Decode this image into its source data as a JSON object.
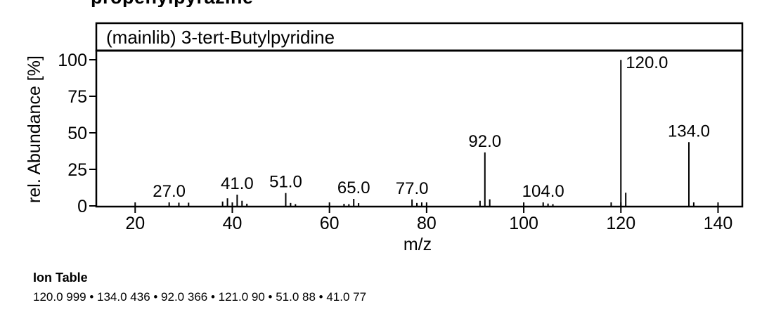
{
  "page": {
    "background": "#ffffff",
    "ink_color": "#000000"
  },
  "header_partial": {
    "text": "propenylpyrazine"
  },
  "chart_data": {
    "type": "bar",
    "subtype": "mass-spectrum-stick-plot",
    "title": "(mainlib) 3-tert-Butylpyridine",
    "xlabel": "m/z",
    "ylabel": "rel. Abundance [%]",
    "xlim": [
      12,
      145
    ],
    "ylim_percent": [
      0,
      100
    ],
    "x_ticks": [
      20,
      40,
      60,
      80,
      100,
      120,
      140
    ],
    "y_ticks_percent": [
      0,
      25,
      50,
      75,
      100
    ],
    "grid": "off",
    "legend": "none",
    "peaks_mz_permille": [
      [
        27,
        24
      ],
      [
        29,
        22
      ],
      [
        31,
        22
      ],
      [
        38,
        30
      ],
      [
        39,
        52
      ],
      [
        41,
        77
      ],
      [
        42,
        35
      ],
      [
        43,
        15
      ],
      [
        51,
        88
      ],
      [
        52,
        20
      ],
      [
        53,
        12
      ],
      [
        63,
        14
      ],
      [
        64,
        12
      ],
      [
        65,
        48
      ],
      [
        66,
        19
      ],
      [
        77,
        44
      ],
      [
        78,
        20
      ],
      [
        79,
        24
      ],
      [
        91,
        35
      ],
      [
        92,
        366
      ],
      [
        93,
        45
      ],
      [
        104,
        24
      ],
      [
        105,
        16
      ],
      [
        106,
        12
      ],
      [
        118,
        24
      ],
      [
        120,
        999
      ],
      [
        121,
        90
      ],
      [
        134,
        436
      ],
      [
        135,
        24
      ]
    ],
    "labeled_peaks": [
      {
        "mz": 27,
        "label": "27.0"
      },
      {
        "mz": 41,
        "label": "41.0"
      },
      {
        "mz": 51,
        "label": "51.0"
      },
      {
        "mz": 65,
        "label": "65.0"
      },
      {
        "mz": 77,
        "label": "77.0"
      },
      {
        "mz": 92,
        "label": "92.0"
      },
      {
        "mz": 104,
        "label": "104.0"
      },
      {
        "mz": 120,
        "label": "120.0",
        "label_side": "right"
      },
      {
        "mz": 134,
        "label": "134.0"
      }
    ]
  },
  "ion_table": {
    "heading": "Ion Table",
    "separator": " • ",
    "entries": [
      {
        "mz": "120.0",
        "abundance": 999
      },
      {
        "mz": "134.0",
        "abundance": 436
      },
      {
        "mz": "92.0",
        "abundance": 366
      },
      {
        "mz": "121.0",
        "abundance": 90
      },
      {
        "mz": "51.0",
        "abundance": 88
      },
      {
        "mz": "41.0",
        "abundance": 77
      }
    ],
    "line": "120.0 999 • 134.0 436 • 92.0 366 • 121.0 90 • 51.0 88 • 41.0 77"
  }
}
